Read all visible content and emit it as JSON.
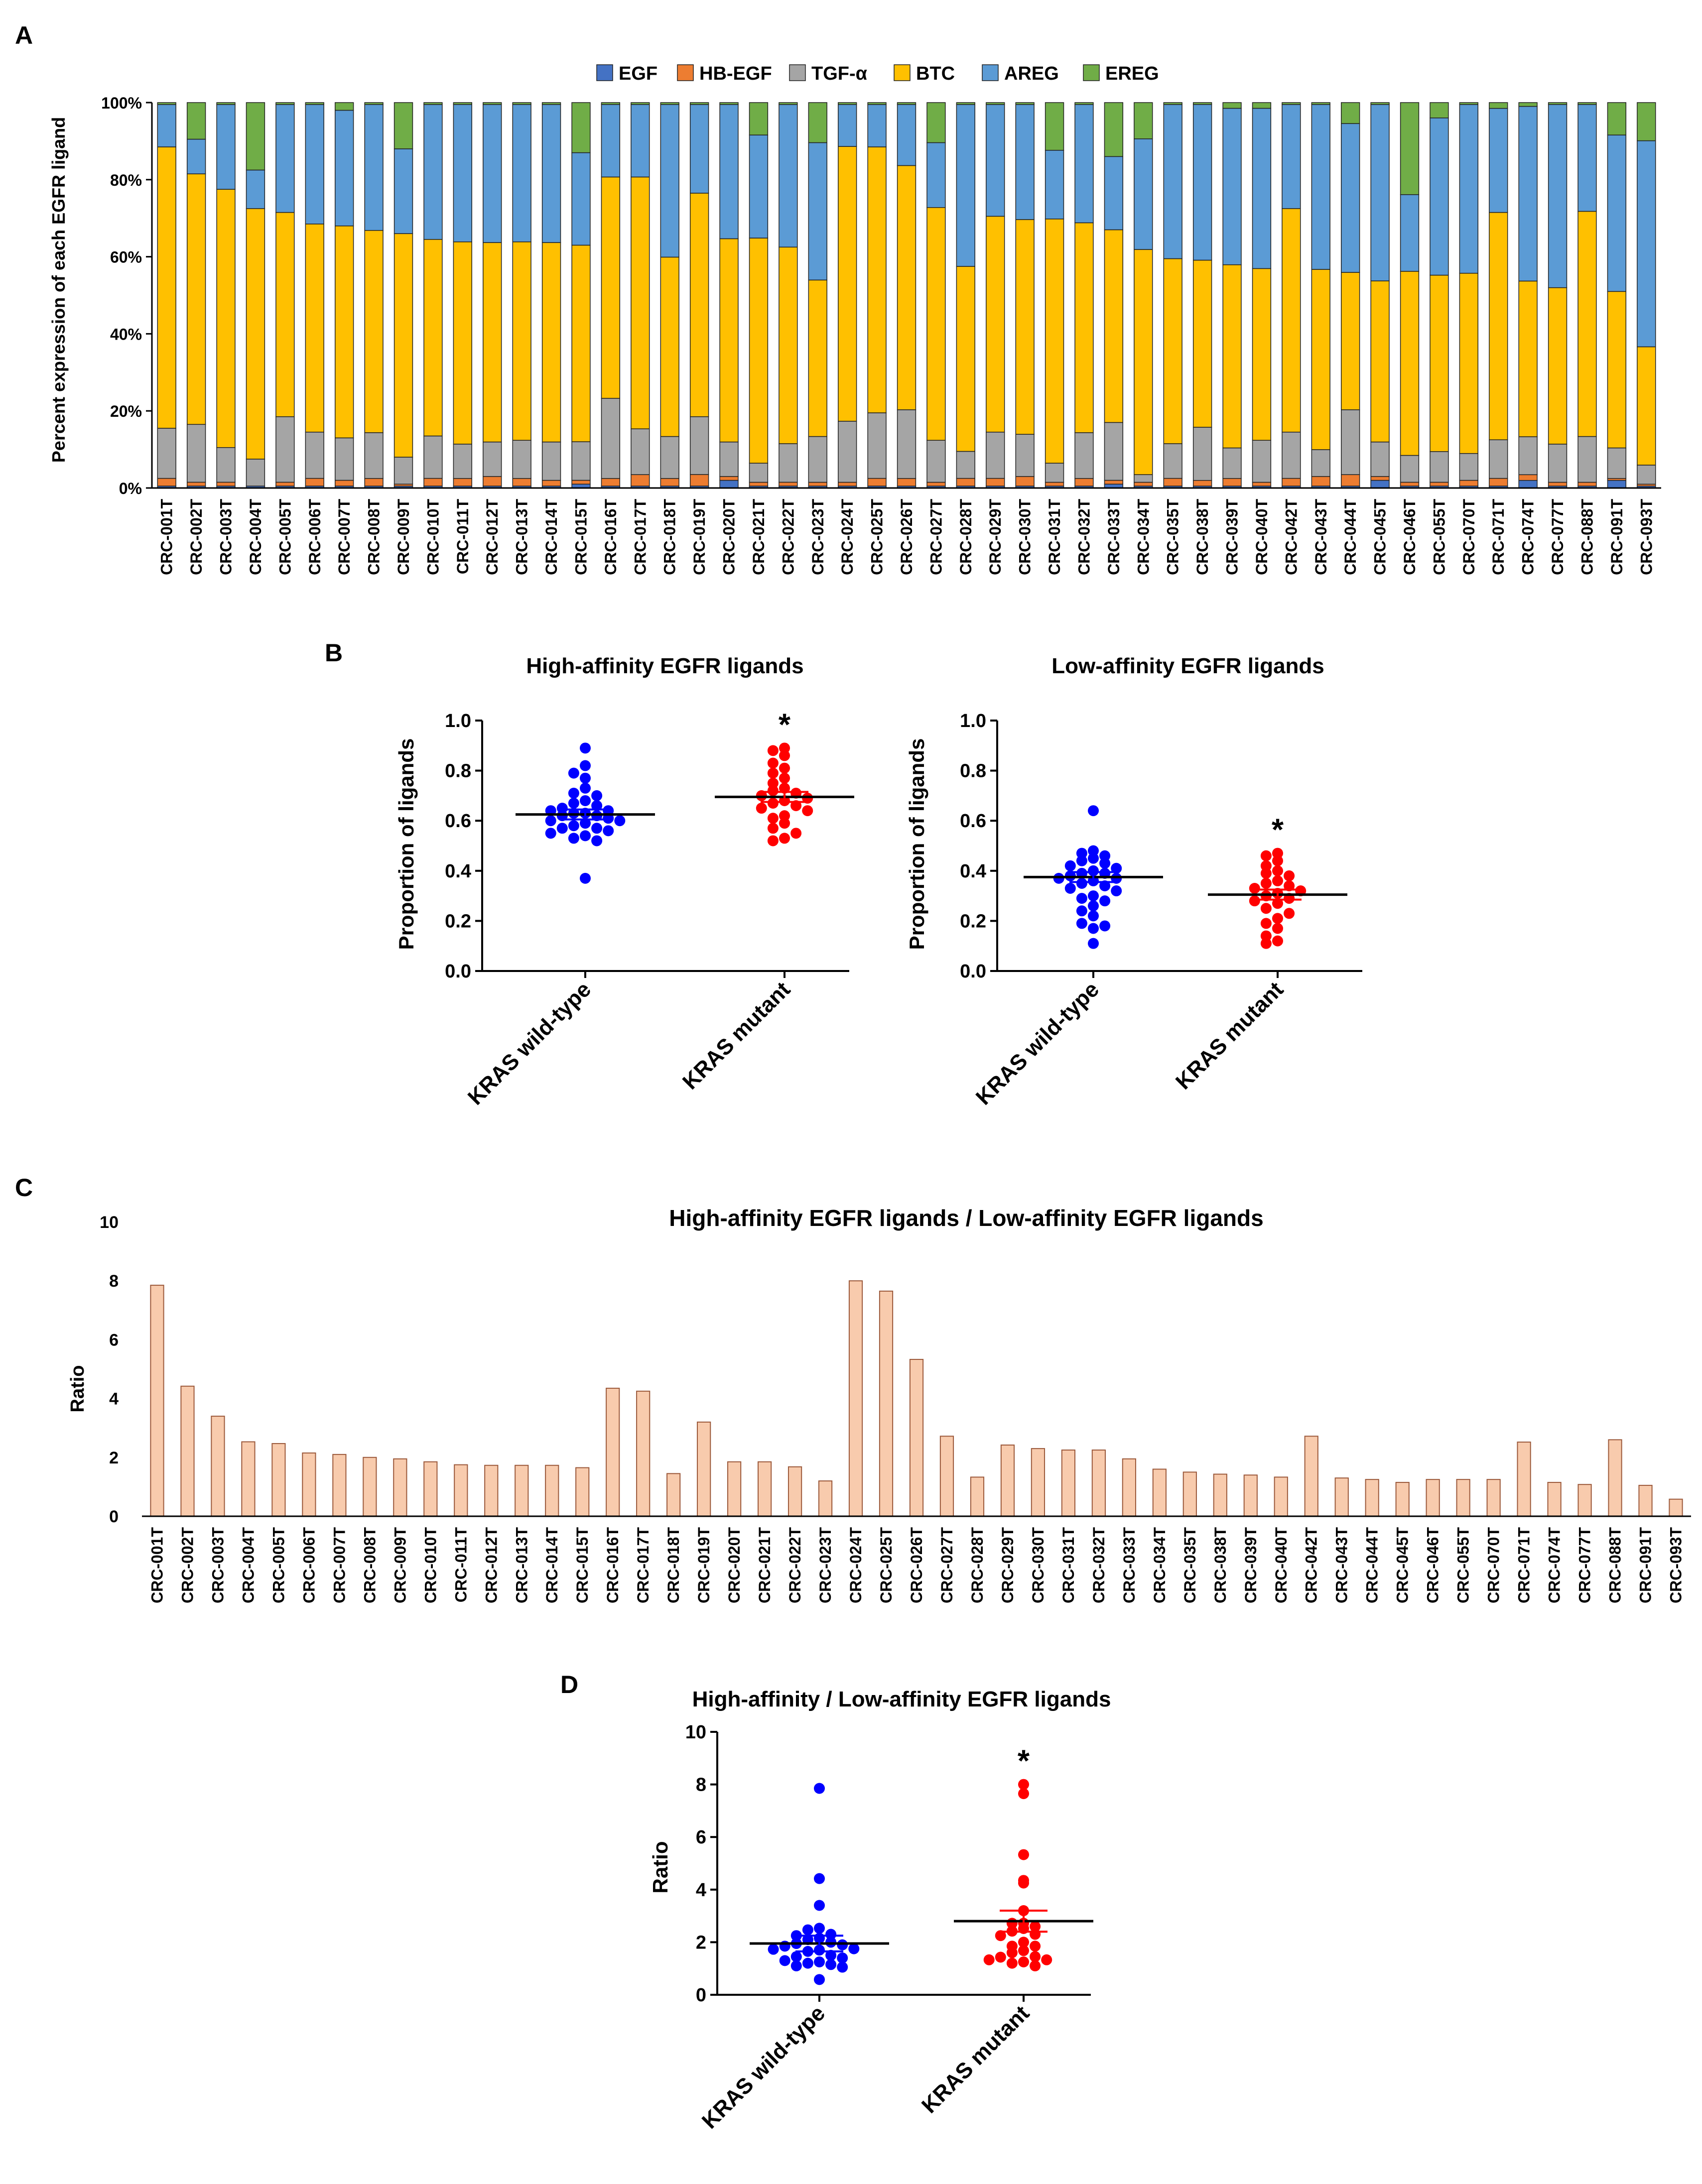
{
  "figure": {
    "panel_labels": [
      "A",
      "B",
      "C",
      "D"
    ]
  },
  "colors": {
    "EGF": "#4472C4",
    "HB-EGF": "#ED7D31",
    "TGF-α": "#A5A5A5",
    "BTC": "#FFC000",
    "AREG": "#5B9BD5",
    "EREG": "#70AD47",
    "wild_type": "#0000FF",
    "mutant": "#FF0000",
    "ratio_bar": "#F8CBAD",
    "ratio_bar_edge": "#9C5A3C"
  },
  "chart_data": [
    {
      "id": "A",
      "type": "bar",
      "stacked": true,
      "ylabel": "Percent expression of each EGFR ligand",
      "yticks": [
        "0%",
        "20%",
        "40%",
        "60%",
        "80%",
        "100%"
      ],
      "ylim": [
        0,
        100
      ],
      "legend_position": "top",
      "categories": [
        "CRC-001T",
        "CRC-002T",
        "CRC-003T",
        "CRC-004T",
        "CRC-005T",
        "CRC-006T",
        "CRC-007T",
        "CRC-008T",
        "CRC-009T",
        "CRC-010T",
        "CRC-011T",
        "CRC-012T",
        "CRC-013T",
        "CRC-014T",
        "CRC-015T",
        "CRC-016T",
        "CRC-017T",
        "CRC-018T",
        "CRC-019T",
        "CRC-020T",
        "CRC-021T",
        "CRC-022T",
        "CRC-023T",
        "CRC-024T",
        "CRC-025T",
        "CRC-026T",
        "CRC-027T",
        "CRC-028T",
        "CRC-029T",
        "CRC-030T",
        "CRC-031T",
        "CRC-032T",
        "CRC-033T",
        "CRC-034T",
        "CRC-035T",
        "CRC-038T",
        "CRC-039T",
        "CRC-040T",
        "CRC-042T",
        "CRC-043T",
        "CRC-044T",
        "CRC-045T",
        "CRC-046T",
        "CRC-055T",
        "CRC-070T",
        "CRC-071T",
        "CRC-074T",
        "CRC-077T",
        "CRC-088T",
        "CRC-091T",
        "CRC-093T"
      ],
      "series": [
        {
          "name": "EGF",
          "values": [
            0.5,
            0.5,
            0.5,
            0.5,
            0.5,
            0.5,
            0.5,
            0.5,
            0.5,
            0.5,
            0.5,
            0.5,
            0.5,
            0.5,
            1,
            0.5,
            0.5,
            0.5,
            0.5,
            2,
            0.5,
            0.5,
            0.5,
            0.5,
            0.5,
            0.5,
            0.5,
            0.5,
            0.5,
            0.5,
            0.5,
            0.5,
            1,
            0.5,
            0.5,
            0.5,
            0.5,
            0.5,
            0.5,
            0.5,
            0.5,
            2,
            0.5,
            0.5,
            0.5,
            0.5,
            2,
            0.5,
            0.5,
            2,
            0.5
          ]
        },
        {
          "name": "HB-EGF",
          "values": [
            2,
            1,
            1,
            0,
            1,
            2,
            1.5,
            2,
            0.5,
            2,
            2,
            2.5,
            2,
            1.5,
            1,
            2,
            3,
            2,
            3,
            1,
            1,
            1,
            1,
            1,
            2,
            2,
            1,
            2,
            2,
            2.5,
            1,
            2,
            1,
            1,
            2,
            1.5,
            2,
            1,
            2,
            2.5,
            3,
            1,
            1,
            1,
            1.5,
            2,
            1.5,
            1,
            1,
            0.5,
            0.5
          ]
        },
        {
          "name": "TGF-α",
          "values": [
            13,
            15,
            9,
            7,
            17,
            12,
            11,
            12,
            7,
            11,
            9,
            9,
            10,
            10,
            10,
            21,
            12,
            11,
            15,
            9,
            5,
            10,
            12,
            16,
            17,
            18,
            11,
            7,
            12,
            11,
            5,
            12,
            15,
            2,
            9,
            14,
            8,
            11,
            12,
            7,
            17,
            9,
            7,
            8,
            7,
            10,
            10,
            10,
            12,
            8,
            5
          ]
        },
        {
          "name": "BTC",
          "values": [
            73,
            65,
            67,
            65,
            53,
            54,
            55,
            53,
            58,
            51,
            53,
            52,
            52,
            52,
            51,
            58,
            66,
            47,
            58,
            53,
            59,
            51,
            41,
            72,
            69,
            64,
            61,
            48,
            56,
            56,
            64,
            55,
            50,
            59,
            48,
            44,
            48,
            45,
            58,
            47,
            36,
            42,
            48,
            46,
            47,
            59,
            41,
            41,
            59,
            41,
            31
          ]
        },
        {
          "name": "AREG",
          "values": [
            11,
            9,
            22,
            10,
            28,
            31,
            30,
            33,
            22,
            35,
            36,
            36,
            36,
            36,
            24,
            19,
            19,
            40,
            23,
            35,
            27,
            37,
            36,
            11,
            11,
            16,
            17,
            42,
            29,
            30,
            18,
            31,
            19,
            29,
            40,
            41,
            41,
            42,
            27,
            43,
            39,
            46,
            20,
            41,
            44,
            27,
            46,
            48,
            28,
            41,
            54
          ]
        },
        {
          "name": "EREG",
          "values": [
            0.5,
            9.5,
            0.5,
            17.5,
            0.5,
            0.5,
            2,
            0.5,
            12,
            0.5,
            0.5,
            0.5,
            0.5,
            0.5,
            13,
            0.5,
            0.5,
            0.5,
            0.5,
            0.5,
            8.5,
            0.5,
            10.5,
            0.5,
            0.5,
            0.5,
            10.5,
            0.5,
            0.5,
            0.5,
            12.5,
            0.5,
            14,
            9.5,
            0.5,
            0.5,
            1.5,
            1.5,
            0.5,
            0.5,
            5.5,
            0.5,
            24,
            4,
            0.5,
            1.5,
            1,
            0.5,
            0.5,
            8.5,
            10
          ]
        }
      ]
    },
    {
      "id": "B-left",
      "type": "scatter",
      "title": "High-affinity EGFR ligands",
      "ylabel": "Proportion of ligands",
      "ylim": [
        0,
        1
      ],
      "yticks": [
        "0.0",
        "0.2",
        "0.4",
        "0.6",
        "0.8",
        "1.0"
      ],
      "categories": [
        "KRAS wild-type",
        "KRAS mutant"
      ],
      "series": [
        {
          "name": "KRAS wild-type",
          "mean": 0.625,
          "sem": 0.02,
          "values": [
            0.89,
            0.82,
            0.79,
            0.77,
            0.73,
            0.71,
            0.7,
            0.68,
            0.67,
            0.66,
            0.65,
            0.64,
            0.64,
            0.63,
            0.63,
            0.62,
            0.62,
            0.61,
            0.6,
            0.6,
            0.59,
            0.58,
            0.57,
            0.57,
            0.56,
            0.55,
            0.54,
            0.53,
            0.52,
            0.37
          ]
        },
        {
          "name": "KRAS mutant",
          "mean": 0.695,
          "sem": 0.02,
          "values": [
            0.89,
            0.88,
            0.86,
            0.83,
            0.81,
            0.79,
            0.77,
            0.75,
            0.73,
            0.72,
            0.71,
            0.7,
            0.69,
            0.68,
            0.67,
            0.66,
            0.65,
            0.64,
            0.62,
            0.61,
            0.59,
            0.57,
            0.55,
            0.53,
            0.52
          ]
        }
      ],
      "annotation": "*"
    },
    {
      "id": "B-right",
      "type": "scatter",
      "title": "Low-affinity EGFR ligands",
      "ylabel": "Proportion of ligands",
      "ylim": [
        0,
        1
      ],
      "yticks": [
        "0.0",
        "0.2",
        "0.4",
        "0.6",
        "0.8",
        "1.0"
      ],
      "categories": [
        "KRAS wild-type",
        "KRAS mutant"
      ],
      "series": [
        {
          "name": "KRAS wild-type",
          "mean": 0.375,
          "sem": 0.02,
          "values": [
            0.64,
            0.48,
            0.47,
            0.46,
            0.45,
            0.44,
            0.43,
            0.42,
            0.41,
            0.4,
            0.39,
            0.39,
            0.38,
            0.37,
            0.37,
            0.36,
            0.35,
            0.34,
            0.33,
            0.32,
            0.3,
            0.29,
            0.28,
            0.26,
            0.24,
            0.22,
            0.19,
            0.18,
            0.17,
            0.11
          ]
        },
        {
          "name": "KRAS mutant",
          "mean": 0.305,
          "sem": 0.02,
          "values": [
            0.47,
            0.46,
            0.44,
            0.42,
            0.4,
            0.39,
            0.38,
            0.36,
            0.35,
            0.34,
            0.33,
            0.32,
            0.31,
            0.3,
            0.29,
            0.28,
            0.27,
            0.25,
            0.23,
            0.21,
            0.19,
            0.17,
            0.14,
            0.12,
            0.11
          ]
        }
      ],
      "annotation": "*"
    },
    {
      "id": "C",
      "type": "bar",
      "title": "High-affinity EGFR ligands / Low-affinity EGFR ligands",
      "ylabel": "Ratio",
      "ylim": [
        0,
        10
      ],
      "yticks": [
        "0",
        "2",
        "4",
        "6",
        "8",
        "10"
      ],
      "categories": [
        "CRC-001T",
        "CRC-002T",
        "CRC-003T",
        "CRC-004T",
        "CRC-005T",
        "CRC-006T",
        "CRC-007T",
        "CRC-008T",
        "CRC-009T",
        "CRC-010T",
        "CRC-011T",
        "CRC-012T",
        "CRC-013T",
        "CRC-014T",
        "CRC-015T",
        "CRC-016T",
        "CRC-017T",
        "CRC-018T",
        "CRC-019T",
        "CRC-020T",
        "CRC-021T",
        "CRC-022T",
        "CRC-023T",
        "CRC-024T",
        "CRC-025T",
        "CRC-026T",
        "CRC-027T",
        "CRC-028T",
        "CRC-029T",
        "CRC-030T",
        "CRC-031T",
        "CRC-032T",
        "CRC-033T",
        "CRC-034T",
        "CRC-035T",
        "CRC-038T",
        "CRC-039T",
        "CRC-040T",
        "CRC-042T",
        "CRC-043T",
        "CRC-044T",
        "CRC-045T",
        "CRC-046T",
        "CRC-055T",
        "CRC-070T",
        "CRC-071T",
        "CRC-074T",
        "CRC-077T",
        "CRC-088T",
        "CRC-091T",
        "CRC-093T"
      ],
      "values": [
        7.85,
        4.42,
        3.4,
        2.53,
        2.47,
        2.15,
        2.1,
        2.0,
        1.95,
        1.85,
        1.75,
        1.73,
        1.73,
        1.73,
        1.65,
        4.35,
        4.25,
        1.45,
        3.2,
        1.85,
        1.85,
        1.68,
        1.2,
        8.0,
        7.65,
        5.33,
        2.72,
        1.33,
        2.42,
        2.3,
        2.25,
        2.25,
        1.95,
        1.6,
        1.5,
        1.43,
        1.4,
        1.33,
        2.72,
        1.3,
        1.25,
        1.15,
        1.25,
        1.25,
        1.25,
        2.52,
        1.15,
        1.08,
        2.6,
        1.05,
        0.58
      ]
    },
    {
      "id": "D",
      "type": "scatter",
      "title": "High-affinity / Low-affinity EGFR ligands",
      "ylabel": "Ratio",
      "ylim": [
        0,
        10
      ],
      "yticks": [
        "0",
        "2",
        "4",
        "6",
        "8",
        "10"
      ],
      "categories": [
        "KRAS wild-type",
        "KRAS mutant"
      ],
      "series": [
        {
          "name": "KRAS wild-type",
          "mean": 1.95,
          "sem": 0.3,
          "values": [
            7.85,
            4.42,
            3.4,
            2.53,
            2.47,
            2.3,
            2.25,
            2.15,
            2.1,
            2.0,
            1.95,
            1.9,
            1.85,
            1.75,
            1.73,
            1.7,
            1.65,
            1.5,
            1.45,
            1.4,
            1.3,
            1.25,
            1.2,
            1.15,
            1.1,
            1.05,
            0.58
          ]
        },
        {
          "name": "KRAS mutant",
          "mean": 2.8,
          "sem": 0.4,
          "values": [
            8.0,
            7.65,
            5.33,
            4.35,
            4.25,
            3.2,
            2.72,
            2.72,
            2.6,
            2.52,
            2.42,
            2.3,
            2.25,
            2.0,
            1.85,
            1.85,
            1.68,
            1.6,
            1.45,
            1.43,
            1.33,
            1.33,
            1.25,
            1.2,
            1.1
          ]
        }
      ],
      "annotation": "*"
    }
  ]
}
